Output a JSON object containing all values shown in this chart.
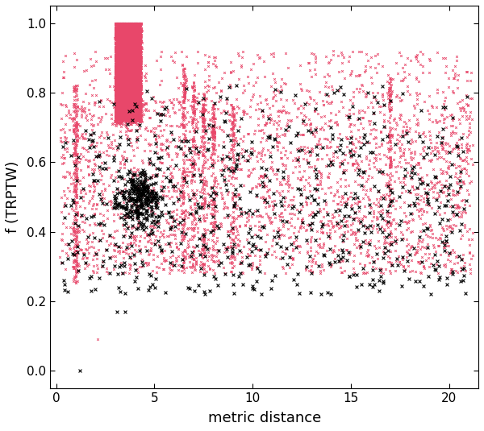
{
  "xlabel": "metric distance",
  "ylabel": "f (TRPTW)",
  "xlim": [
    -0.3,
    21.5
  ],
  "ylim": [
    -0.05,
    1.05
  ],
  "xticks": [
    0,
    5,
    10,
    15,
    20
  ],
  "yticks": [
    0.0,
    0.2,
    0.4,
    0.6,
    0.8,
    1.0
  ],
  "red_color": "#E8476A",
  "black_color": "#000000",
  "background": "#ffffff"
}
